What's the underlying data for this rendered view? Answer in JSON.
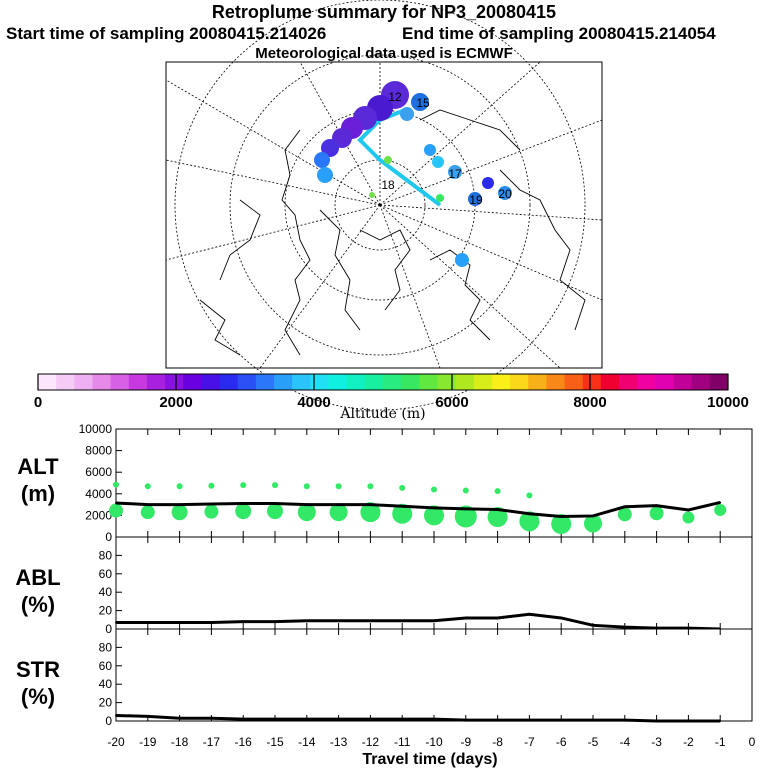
{
  "header": {
    "title": "Retroplume summary for NP3_20080415",
    "start_time": "Start time of sampling 20080415.214026",
    "end_time": "End time of sampling 20080415.214054",
    "met_data": "Meteorological data used is ECMWF"
  },
  "map": {
    "clusters": [
      {
        "label": "15",
        "color": "#1f6fe0"
      },
      {
        "label": "17",
        "color": "#3aa0f0"
      },
      {
        "label": "19",
        "color": "#1f6fe0"
      },
      {
        "label": "20",
        "color": "#2a8cf0"
      },
      {
        "label": "12",
        "color": "#5a2ad8"
      },
      {
        "label": "18",
        "color": "#6fe04a"
      }
    ]
  },
  "colorbar": {
    "tick_labels": [
      "0",
      "2000",
      "4000",
      "6000",
      "8000",
      "10000"
    ],
    "label": "Altitude (m)",
    "colors": [
      "#fbe6fb",
      "#f5ccf5",
      "#eeb0f0",
      "#e58ae8",
      "#d860e4",
      "#c63ae0",
      "#a820e0",
      "#8810e0",
      "#6a00e0",
      "#4a10e8",
      "#2a2af0",
      "#2a50f5",
      "#2a78f8",
      "#28a0fa",
      "#28c4fa",
      "#20e0f5",
      "#10f0e0",
      "#10f0c0",
      "#18f0a0",
      "#28ec80",
      "#38e860",
      "#60e840",
      "#88e830",
      "#b0e820",
      "#d8ee18",
      "#f8f018",
      "#f8d818",
      "#f8b018",
      "#f88818",
      "#f86018",
      "#f83018",
      "#f00030",
      "#f00070",
      "#f000a0",
      "#e000b0",
      "#c00098",
      "#a00080",
      "#800068"
    ]
  },
  "chart_data": [
    {
      "type": "line",
      "name": "ALT",
      "ylabel": "ALT\n(m)",
      "ylabel_line1": "ALT",
      "ylabel_line2": "(m)",
      "ylim": [
        0,
        10000
      ],
      "yticks": [
        "0",
        "2000",
        "4000",
        "6000",
        "8000",
        "10000"
      ],
      "x": [
        -20,
        -19,
        -18,
        -17,
        -16,
        -15,
        -14,
        -13,
        -12,
        -11,
        -10,
        -9,
        -8,
        -7,
        -6,
        -5,
        -4,
        -3,
        -2,
        -1
      ],
      "values": [
        3150,
        3000,
        3000,
        3050,
        3100,
        3100,
        3000,
        3000,
        3000,
        2850,
        2700,
        2600,
        2550,
        2150,
        1900,
        1950,
        2800,
        2900,
        2500,
        3200
      ],
      "plume_color": "#33e866"
    },
    {
      "type": "line",
      "name": "ABL",
      "ylabel_line1": "ABL",
      "ylabel_line2": "(%)",
      "ylim": [
        0,
        100
      ],
      "yticks": [
        "0",
        "20",
        "40",
        "60",
        "80"
      ],
      "x": [
        -20,
        -19,
        -18,
        -17,
        -16,
        -15,
        -14,
        -13,
        -12,
        -11,
        -10,
        -9,
        -8,
        -7,
        -6,
        -5,
        -4,
        -3,
        -2,
        -1
      ],
      "values": [
        7,
        7,
        7,
        7,
        8,
        8,
        9,
        9,
        9,
        9,
        9,
        12,
        12,
        16,
        12,
        4,
        2,
        1,
        1,
        0
      ]
    },
    {
      "type": "line",
      "name": "STR",
      "ylabel_line1": "STR",
      "ylabel_line2": "(%)",
      "ylim": [
        0,
        100
      ],
      "yticks": [
        "0",
        "20",
        "40",
        "60",
        "80"
      ],
      "x": [
        -20,
        -19,
        -18,
        -17,
        -16,
        -15,
        -14,
        -13,
        -12,
        -11,
        -10,
        -9,
        -8,
        -7,
        -6,
        -5,
        -4,
        -3,
        -2,
        -1
      ],
      "values": [
        6,
        5,
        3,
        3,
        2,
        2,
        2,
        2,
        2,
        2,
        2,
        1,
        1,
        1,
        1,
        1,
        1,
        0,
        0,
        0
      ]
    }
  ],
  "xaxis": {
    "xlim": [
      -20,
      0
    ],
    "tick_labels": [
      "-20",
      "-19",
      "-18",
      "-17",
      "-16",
      "-15",
      "-14",
      "-13",
      "-12",
      "-11",
      "-10",
      "-9",
      "-8",
      "-7",
      "-6",
      "-5",
      "-4",
      "-3",
      "-2",
      "-1",
      "0"
    ],
    "label": "Travel time (days)"
  }
}
